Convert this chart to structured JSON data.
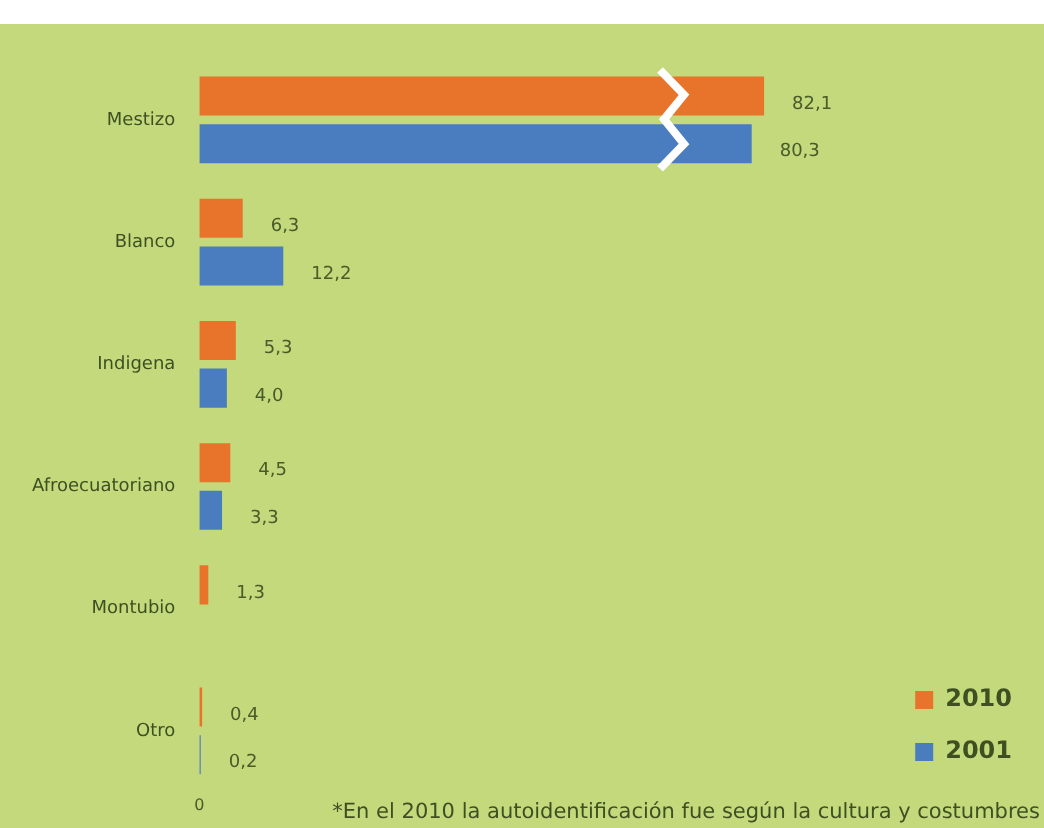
{
  "chart_data": {
    "type": "bar",
    "orientation": "horizontal",
    "categories": [
      "Mestizo",
      "Blanco",
      "Indigena",
      "Afroecuatoriano",
      "Montubio",
      "Otro"
    ],
    "series": [
      {
        "name": "2010",
        "color": "#e8732a",
        "values": [
          82.1,
          6.3,
          5.3,
          4.5,
          1.3,
          0.4
        ],
        "value_labels": [
          "82,1",
          "6,3",
          "5,3",
          "4,5",
          "1,3",
          "0,4"
        ]
      },
      {
        "name": "2001",
        "color": "#4a7dc0",
        "values": [
          80.3,
          12.2,
          4.0,
          3.3,
          null,
          0.2
        ],
        "value_labels": [
          "80,3",
          "12,2",
          "4,0",
          "3,3",
          null,
          "0,2"
        ]
      }
    ],
    "grid": false,
    "legend": "bottom right",
    "annotations": [
      "0",
      "*En el 2010 la autoidentificación fue según la cultura y costumbres"
    ]
  }
}
